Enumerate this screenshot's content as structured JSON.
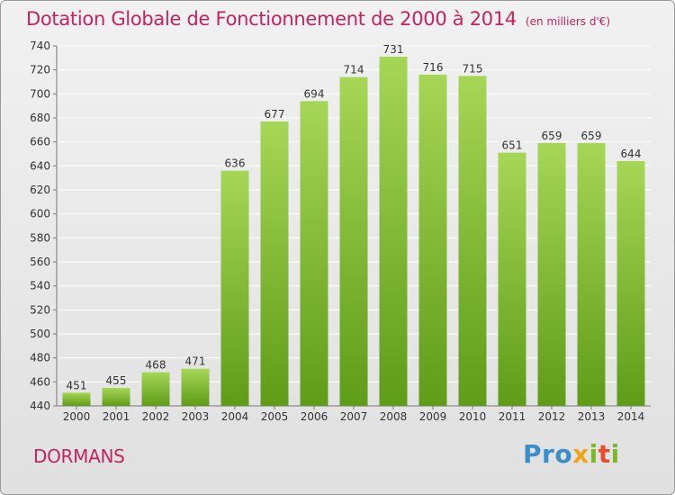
{
  "colors": {
    "title": "#c4245e",
    "bar_light": "#a6d655",
    "bar_dark": "#5f9c17",
    "grid": "#ffffff",
    "background": "#e8e8e8"
  },
  "header": {
    "title": "Dotation Globale de Fonctionnement de 2000 à 2014",
    "unit": "(en milliers d'€)"
  },
  "footer": {
    "commune": "DORMANS",
    "logo_letters": [
      {
        "ch": "P",
        "color": "#3a8ec9"
      },
      {
        "ch": "r",
        "color": "#3a8ec9"
      },
      {
        "ch": "o",
        "color": "#3a8ec9"
      },
      {
        "ch": "x",
        "color": "#f4a21a"
      },
      {
        "ch": "i",
        "color": "#7ab828"
      },
      {
        "ch": "t",
        "color": "#e94b2c"
      },
      {
        "ch": "i",
        "color": "#7ab828"
      }
    ]
  },
  "chart_data": {
    "type": "bar",
    "title": "Dotation Globale de Fonctionnement de 2000 à 2014",
    "subtitle": "(en milliers d'€)",
    "xlabel": "",
    "ylabel": "",
    "categories": [
      "2000",
      "2001",
      "2002",
      "2003",
      "2004",
      "2005",
      "2006",
      "2007",
      "2008",
      "2009",
      "2010",
      "2011",
      "2012",
      "2013",
      "2014"
    ],
    "values": [
      451,
      455,
      468,
      471,
      636,
      677,
      694,
      714,
      731,
      716,
      715,
      651,
      659,
      659,
      644
    ],
    "ylim": [
      440,
      740
    ],
    "yticks": [
      440,
      460,
      480,
      500,
      520,
      540,
      560,
      580,
      600,
      620,
      640,
      660,
      680,
      700,
      720,
      740
    ],
    "grid": true,
    "data_labels": true
  }
}
